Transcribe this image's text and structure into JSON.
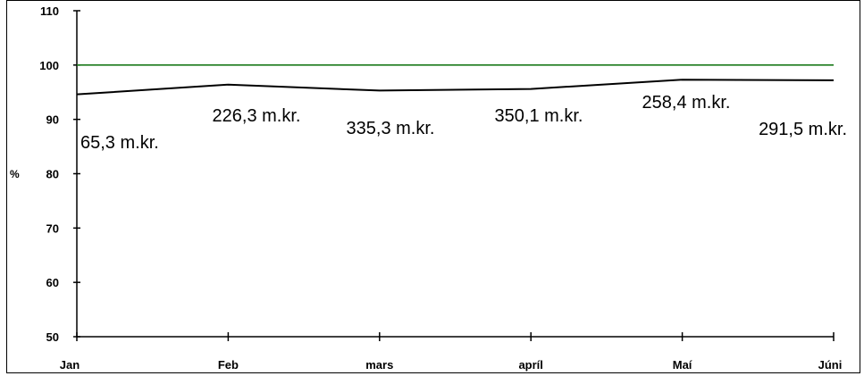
{
  "chart_data": {
    "type": "line",
    "title": "",
    "xlabel": "",
    "ylabel": "%",
    "categories": [
      "Jan",
      "Feb",
      "mars",
      "apríl",
      "Maí",
      "Júni"
    ],
    "ylim": [
      50,
      110
    ],
    "yticks": [
      50,
      60,
      70,
      80,
      90,
      100,
      110
    ],
    "grid": false,
    "legend": "none",
    "series": [
      {
        "values": [
          94.6,
          96.4,
          95.3,
          95.6,
          97.3,
          97.2
        ],
        "color": "#000000",
        "data_labels": [
          "65,3 m.kr.",
          "226,3 m.kr.",
          "335,3 m.kr.",
          "350,1 m.kr.",
          "258,4 m.kr.",
          "291,5 m.kr."
        ]
      },
      {
        "values": [
          100,
          100,
          100,
          100,
          100,
          100
        ],
        "color": "#1a7a1a"
      }
    ]
  }
}
